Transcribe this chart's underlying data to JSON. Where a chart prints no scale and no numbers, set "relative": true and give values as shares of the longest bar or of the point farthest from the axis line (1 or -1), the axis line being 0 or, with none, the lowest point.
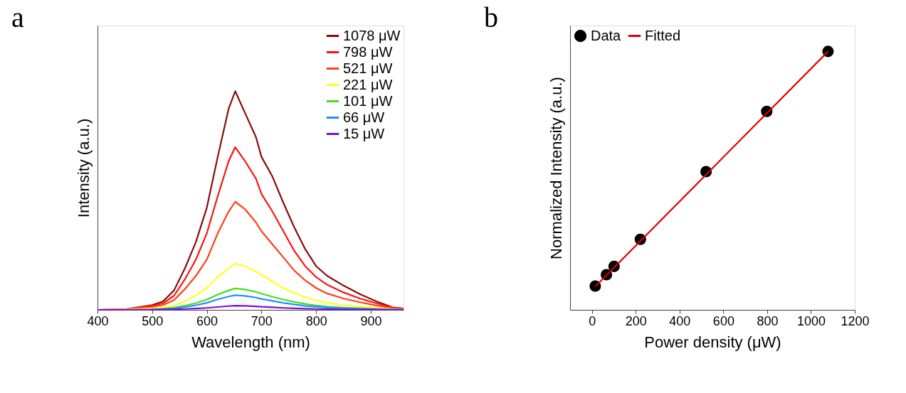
{
  "chart_data": [
    {
      "type": "line",
      "title": "a",
      "xlabel": "Wavelength (nm)",
      "ylabel": "Intensity (a.u.)",
      "relative": true,
      "tick_labels": "x",
      "legend": "top right",
      "line_style": "solid",
      "x": [
        400,
        450,
        500,
        520,
        540,
        560,
        580,
        600,
        620,
        640,
        652,
        670,
        690,
        700,
        720,
        740,
        760,
        780,
        800,
        820,
        850,
        880,
        910,
        940,
        960
      ],
      "xlim": [
        400,
        960
      ],
      "xticks": [
        400,
        500,
        600,
        700,
        800,
        900
      ],
      "series": [
        {
          "name": "1078 μW",
          "color": "#8b0a0a",
          "values": [
            0,
            0.002,
            0.022,
            0.039,
            0.089,
            0.19,
            0.31,
            0.467,
            0.7,
            0.92,
            1.0,
            0.9,
            0.79,
            0.7,
            0.61,
            0.49,
            0.378,
            0.278,
            0.2,
            0.156,
            0.111,
            0.072,
            0.039,
            0.011,
            0.006
          ]
        },
        {
          "name": "798 μW",
          "color": "#ff1010",
          "values": [
            0,
            0.002,
            0.018,
            0.03,
            0.065,
            0.14,
            0.23,
            0.35,
            0.52,
            0.68,
            0.744,
            0.68,
            0.6,
            0.53,
            0.45,
            0.36,
            0.27,
            0.2,
            0.15,
            0.115,
            0.08,
            0.052,
            0.03,
            0.01,
            0.005
          ]
        },
        {
          "name": "521 μW",
          "color": "#ff4010",
          "values": [
            0,
            0.002,
            0.014,
            0.022,
            0.045,
            0.095,
            0.155,
            0.23,
            0.35,
            0.45,
            0.494,
            0.46,
            0.4,
            0.36,
            0.3,
            0.24,
            0.18,
            0.135,
            0.1,
            0.075,
            0.052,
            0.035,
            0.02,
            0.008,
            0.004
          ]
        },
        {
          "name": "221 μW",
          "color": "#ffff20",
          "values": [
            0,
            0.001,
            0.006,
            0.01,
            0.02,
            0.04,
            0.066,
            0.1,
            0.15,
            0.19,
            0.211,
            0.2,
            0.175,
            0.16,
            0.13,
            0.1,
            0.078,
            0.058,
            0.043,
            0.032,
            0.022,
            0.015,
            0.009,
            0.004,
            0.002
          ]
        },
        {
          "name": "101 μW",
          "color": "#40e020",
          "values": [
            null,
            null,
            0.003,
            0.005,
            0.01,
            0.019,
            0.031,
            0.047,
            0.07,
            0.089,
            0.098,
            0.093,
            0.082,
            0.074,
            0.06,
            0.047,
            0.036,
            0.027,
            0.02,
            0.015,
            0.01,
            0.007,
            0.004,
            0.002,
            0.001
          ]
        },
        {
          "name": "66 μW",
          "color": "#1e90ff",
          "values": [
            null,
            null,
            0.002,
            0.003,
            0.007,
            0.013,
            0.021,
            0.032,
            0.048,
            0.061,
            0.067,
            0.064,
            0.056,
            0.05,
            0.041,
            0.032,
            0.025,
            0.018,
            0.014,
            0.01,
            0.007,
            0.005,
            0.003,
            0.001,
            0.001
          ]
        },
        {
          "name": "15 μW",
          "color": "#7b10d0",
          "values": [
            0,
            0,
            0.001,
            0.001,
            0.002,
            0.004,
            0.006,
            0.009,
            0.013,
            0.017,
            0.019,
            0.018,
            0.016,
            0.014,
            0.012,
            0.009,
            0.007,
            0.005,
            0.004,
            0.003,
            0.002,
            0.001,
            0.001,
            0,
            0
          ]
        }
      ]
    },
    {
      "type": "scatter",
      "title": "b",
      "xlabel": "Power density (μW)",
      "ylabel": "Normalized Intensity (a.u.)",
      "relative": true,
      "tick_labels": "x",
      "legend": "top left",
      "xlim": [
        -100,
        1200
      ],
      "xticks": [
        0,
        200,
        400,
        600,
        800,
        1000,
        1200
      ],
      "series": [
        {
          "name": "Data",
          "type": "scatter",
          "marker": "circle",
          "color": "#000000",
          "x": [
            15,
            66,
            101,
            221,
            521,
            798,
            1078
          ],
          "values": [
            0.092,
            0.136,
            0.168,
            0.273,
            0.535,
            0.768,
            1.0
          ]
        },
        {
          "name": "Fitted",
          "type": "line",
          "marker": "none",
          "color": "#e00000",
          "x": [
            15,
            1078
          ],
          "values": [
            0.09,
            1.0
          ]
        }
      ]
    }
  ]
}
